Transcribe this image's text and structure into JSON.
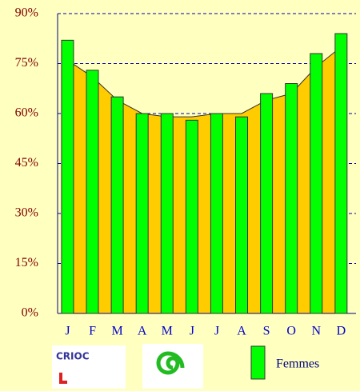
{
  "chart_data": {
    "type": "bar",
    "categories": [
      "J",
      "F",
      "M",
      "A",
      "M",
      "J",
      "J",
      "A",
      "S",
      "O",
      "N",
      "D"
    ],
    "series": [
      {
        "name": "Femmes",
        "color": "#00ff00",
        "values": [
          82,
          73,
          65,
          60,
          60,
          58,
          60,
          59,
          66,
          69,
          78,
          84
        ]
      }
    ],
    "area": {
      "color": "#ffcc00",
      "values": [
        76,
        71,
        64,
        60,
        59,
        59,
        60,
        60,
        64,
        66,
        74,
        80
      ]
    },
    "ylim": [
      0,
      90
    ],
    "yticks": [
      {
        "value": 0,
        "label": "0%"
      },
      {
        "value": 15,
        "label": "15%"
      },
      {
        "value": 30,
        "label": "30%"
      },
      {
        "value": 45,
        "label": "45%"
      },
      {
        "value": 60,
        "label": "60%"
      },
      {
        "value": 75,
        "label": "75%"
      },
      {
        "value": 90,
        "label": "90%"
      }
    ],
    "grid": true,
    "logos": [
      "CRIOC"
    ]
  }
}
